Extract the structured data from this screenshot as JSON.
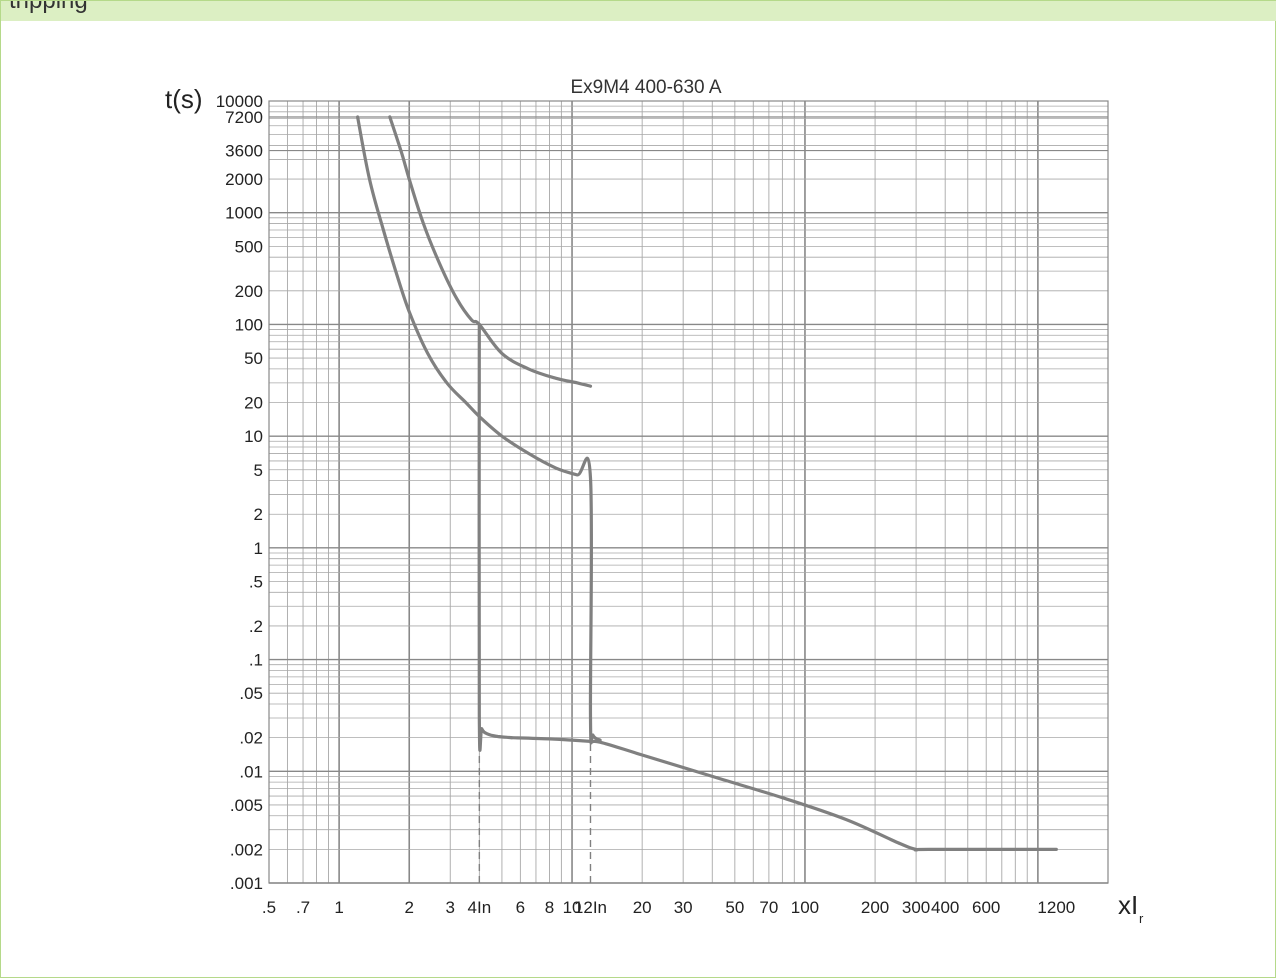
{
  "header": {
    "text": "tripping"
  },
  "chart_data": {
    "type": "line",
    "title": "Ex9M4 400-630 A",
    "xlabel": "xI",
    "xlabel_sub": "r",
    "ylabel": "t(s)",
    "xscale": "log",
    "yscale": "log",
    "xlim": [
      0.5,
      2000
    ],
    "ylim": [
      0.001,
      10000
    ],
    "grid": true,
    "colors": {
      "curve": "#808080",
      "grid": "#a8a8a8",
      "grid_strong": "#888888"
    },
    "x_ticks": [
      {
        "value": 0.5,
        "label": ".5"
      },
      {
        "value": 0.7,
        "label": ".7"
      },
      {
        "value": 1,
        "label": "1"
      },
      {
        "value": 2,
        "label": "2"
      },
      {
        "value": 3,
        "label": "3"
      },
      {
        "value": 4,
        "label": "4In"
      },
      {
        "value": 6,
        "label": "6"
      },
      {
        "value": 8,
        "label": "8"
      },
      {
        "value": 10,
        "label": "10"
      },
      {
        "value": 12,
        "label": "12In"
      },
      {
        "value": 20,
        "label": "20"
      },
      {
        "value": 30,
        "label": "30"
      },
      {
        "value": 50,
        "label": "50"
      },
      {
        "value": 70,
        "label": "70"
      },
      {
        "value": 100,
        "label": "100"
      },
      {
        "value": 200,
        "label": "200"
      },
      {
        "value": 300,
        "label": "300"
      },
      {
        "value": 400,
        "label": "400"
      },
      {
        "value": 600,
        "label": "600"
      },
      {
        "value": 1200,
        "label": "1200"
      }
    ],
    "y_ticks": [
      {
        "value": 10000,
        "label": "10000"
      },
      {
        "value": 7200,
        "label": "7200"
      },
      {
        "value": 3600,
        "label": "3600"
      },
      {
        "value": 2000,
        "label": "2000"
      },
      {
        "value": 1000,
        "label": "1000"
      },
      {
        "value": 500,
        "label": "500"
      },
      {
        "value": 200,
        "label": "200"
      },
      {
        "value": 100,
        "label": "100"
      },
      {
        "value": 50,
        "label": "50"
      },
      {
        "value": 20,
        "label": "20"
      },
      {
        "value": 10,
        "label": "10"
      },
      {
        "value": 5,
        "label": "5"
      },
      {
        "value": 2,
        "label": "2"
      },
      {
        "value": 1,
        "label": "1"
      },
      {
        "value": 0.5,
        "label": ".5"
      },
      {
        "value": 0.2,
        "label": ".2"
      },
      {
        "value": 0.1,
        "label": ".1"
      },
      {
        "value": 0.05,
        "label": ".05"
      },
      {
        "value": 0.02,
        "label": ".02"
      },
      {
        "value": 0.01,
        "label": ".01"
      },
      {
        "value": 0.005,
        "label": ".005"
      },
      {
        "value": 0.002,
        "label": ".002"
      },
      {
        "value": 0.001,
        "label": ".001"
      }
    ],
    "series": [
      {
        "role": "lower-curve",
        "x": [
          1.2,
          1.35,
          1.55,
          1.75,
          2.0,
          2.4,
          2.9,
          3.5,
          4.0,
          5.0,
          6.5,
          8.5,
          10.5,
          12.0,
          12.0,
          12.3,
          13.2
        ],
        "y": [
          7200,
          2000,
          700,
          300,
          130,
          55,
          30,
          20,
          15,
          10,
          7,
          5.2,
          4.5,
          4.2,
          0.03,
          0.021,
          0.019
        ]
      },
      {
        "role": "upper-curve",
        "x": [
          1.65,
          1.85,
          2.0,
          2.3,
          2.7,
          3.2,
          3.7,
          4.0,
          5.0,
          6.5,
          8.5,
          10.5,
          12.0
        ],
        "y": [
          7200,
          3500,
          2000,
          800,
          350,
          170,
          110,
          100,
          55,
          40,
          33,
          30,
          28
        ]
      },
      {
        "role": "4In-drop",
        "x": [
          4.0,
          4.0,
          4.1,
          4.35,
          4.8,
          5.5
        ],
        "y": [
          100,
          0.032,
          0.024,
          0.0215,
          0.0205,
          0.02
        ]
      },
      {
        "role": "instantaneous-tail",
        "x": [
          5.5,
          8,
          10,
          12,
          13.5,
          20,
          40,
          80,
          150,
          250,
          300,
          340,
          1200
        ],
        "y": [
          0.02,
          0.0195,
          0.019,
          0.0185,
          0.018,
          0.014,
          0.009,
          0.0058,
          0.0037,
          0.0023,
          0.002,
          0.002,
          0.002
        ]
      }
    ],
    "reference_lines": [
      {
        "x": 4,
        "from": 0.001,
        "to": 0.032,
        "style": "dashed"
      },
      {
        "x": 12,
        "from": 0.001,
        "to": 0.03,
        "style": "dashed"
      }
    ]
  }
}
